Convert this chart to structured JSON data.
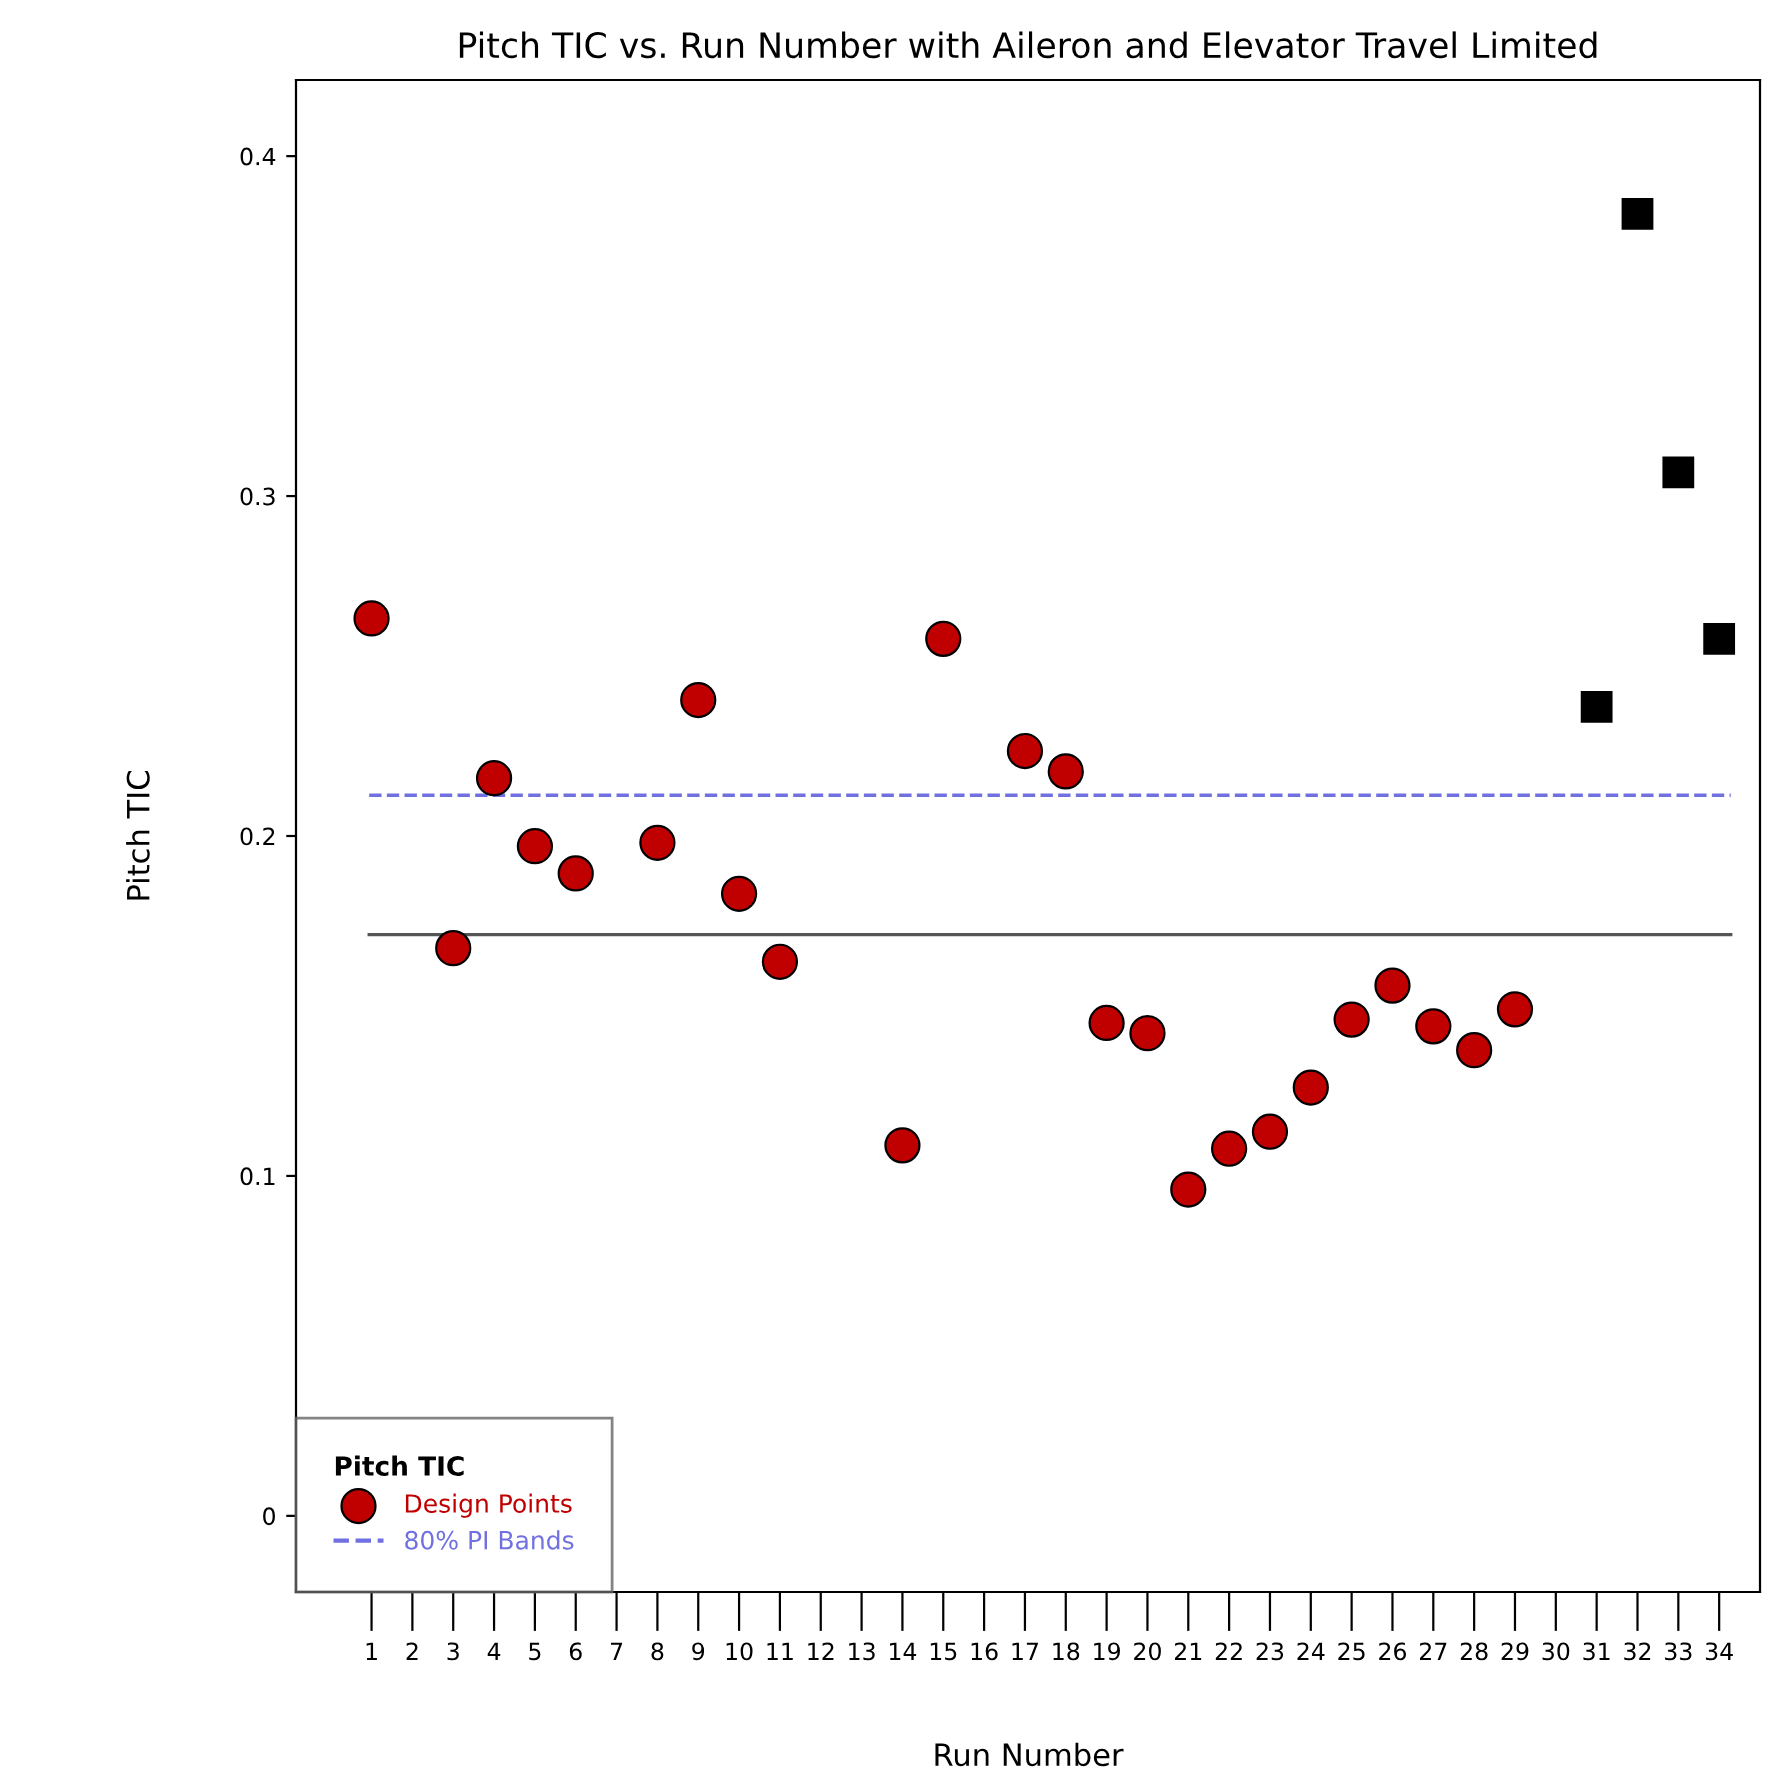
{
  "chart_data": {
    "type": "scatter",
    "title": "Pitch TIC vs. Run Number with Aileron and Elevator Travel Limited",
    "xlabel": "Run Number",
    "ylabel": "Pitch TIC",
    "legend_title": "Pitch TIC",
    "series": [
      {
        "name": "Design Points",
        "color": "#c00000",
        "marker": "circle",
        "x": [
          1,
          3,
          4,
          5,
          6,
          8,
          9,
          10,
          11,
          14,
          15,
          17,
          18,
          19,
          20,
          21,
          22,
          23,
          24,
          25,
          26,
          27,
          28,
          29
        ],
        "values": [
          0.264,
          0.167,
          0.217,
          0.197,
          0.189,
          0.198,
          0.24,
          0.183,
          0.163,
          0.109,
          0.258,
          0.225,
          0.219,
          0.145,
          0.142,
          0.096,
          0.108,
          0.113,
          0.126,
          0.146,
          0.156,
          0.144,
          0.137,
          0.149
        ]
      },
      {
        "color": "#000000",
        "marker": "square",
        "x": [
          31,
          32,
          33,
          34
        ],
        "values": [
          0.238,
          0.383,
          0.307,
          0.258
        ]
      }
    ],
    "ref_lines": [
      {
        "axis": "y",
        "value": 0.212,
        "label": "80% PI Bands",
        "color": "#7070e0",
        "line_style": "dashed"
      },
      {
        "axis": "y",
        "value": 0.171,
        "color": "#555555",
        "line_style": "solid"
      }
    ],
    "xlim": [
      -0.85,
      35.0
    ],
    "ylim": [
      -0.0224,
      0.4224
    ],
    "xticks": [
      1,
      2,
      3,
      4,
      5,
      6,
      7,
      8,
      9,
      10,
      11,
      12,
      13,
      14,
      15,
      16,
      17,
      18,
      19,
      20,
      21,
      22,
      23,
      24,
      25,
      26,
      27,
      28,
      29,
      30,
      31,
      32,
      33,
      34
    ],
    "yticks": [
      0,
      0.1,
      0.2,
      0.3,
      0.4
    ],
    "grid": false,
    "legend": "bottom left"
  }
}
